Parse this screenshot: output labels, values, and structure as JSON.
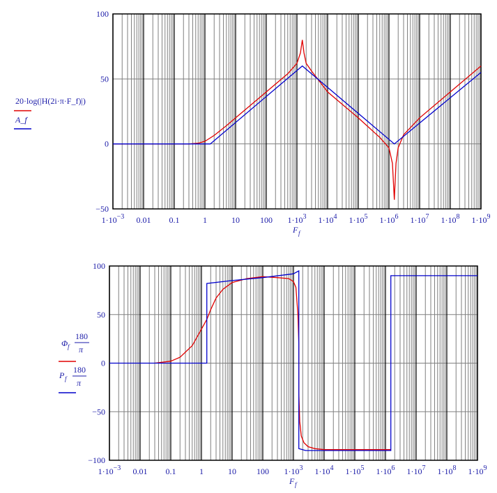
{
  "chart_data": [
    {
      "type": "line",
      "title": "",
      "xscale": "log",
      "xlim": [
        0.001,
        1000000000
      ],
      "ylim": [
        -50,
        100
      ],
      "xticks": [
        "1·10^-3",
        "0.01",
        "0.1",
        "1",
        "10",
        "100",
        "1·10^3",
        "1·10^4",
        "1·10^5",
        "1·10^6",
        "1·10^7",
        "1·10^8",
        "1·10^9"
      ],
      "yticks": [
        -50,
        0,
        50,
        100
      ],
      "xlabel": "F_f",
      "ylabel_series": [
        "20·log(|H(2i·π·F_f)|)",
        "A_f"
      ],
      "grid": true,
      "series": [
        {
          "name": "20·log(|H(2i·π·F_f)|)",
          "color": "#e00000",
          "x": [
            0.001,
            0.3,
            0.6,
            1,
            2,
            5,
            10,
            100,
            500,
            1000,
            1300,
            1500,
            1700,
            2000,
            3000,
            10000,
            100000,
            500000,
            1000000,
            1300000,
            1500000,
            1700000,
            2000000,
            3000000,
            10000000,
            100000000,
            1000000000
          ],
          "y": [
            0,
            0,
            0.5,
            2,
            6.5,
            14,
            20,
            40,
            54,
            62,
            70,
            80,
            70,
            62,
            56,
            40,
            20,
            5,
            -3,
            -15,
            -43,
            -15,
            -3,
            7,
            20,
            40,
            60
          ]
        },
        {
          "name": "A_f",
          "color": "#0000cc",
          "x": [
            0.001,
            1.5,
            1500,
            1500000,
            1000000000
          ],
          "y": [
            0,
            0,
            60,
            0,
            55
          ]
        }
      ]
    },
    {
      "type": "line",
      "title": "",
      "xscale": "log",
      "xlim": [
        0.001,
        1000000000
      ],
      "ylim": [
        -100,
        100
      ],
      "xticks": [
        "1·10^-3",
        "0.01",
        "0.1",
        "1",
        "10",
        "100",
        "1·10^3",
        "1·10^4",
        "1·10^5",
        "1·10^6",
        "1·10^7",
        "1·10^8",
        "1·10^9"
      ],
      "yticks": [
        -100,
        -50,
        0,
        50,
        100
      ],
      "xlabel": "F_f",
      "ylabel_series": [
        "Φ_f·180/π",
        "P_f·180/π"
      ],
      "grid": true,
      "series": [
        {
          "name": "Φ_f·180/π",
          "color": "#e00000",
          "x": [
            0.03,
            0.1,
            0.2,
            0.5,
            1,
            1.5,
            2,
            3,
            5,
            10,
            30,
            100,
            300,
            700,
            1000,
            1200,
            1400,
            1500,
            1500,
            1600,
            1800,
            2200,
            3000,
            5000,
            10000,
            15000,
            120000,
            1500000
          ],
          "y": [
            0,
            2,
            6,
            18,
            35,
            45,
            55,
            67,
            76,
            83,
            87,
            89,
            88,
            87,
            84,
            78,
            50,
            20,
            -30,
            -60,
            -75,
            -82,
            -86,
            -88,
            -89,
            -89,
            -89,
            -89
          ]
        },
        {
          "name": "P_f·180/π",
          "color": "#0000cc",
          "x": [
            0.001,
            1.5,
            1.5,
            10,
            100,
            1000,
            1500,
            1500,
            2500,
            100000,
            1500000,
            1500000,
            1000000000
          ],
          "y": [
            0,
            0,
            82,
            85,
            88,
            92,
            95,
            -88,
            -90,
            -90,
            -90,
            90,
            90
          ]
        }
      ]
    }
  ],
  "top_chart": {
    "legend": {
      "line1": "20·log(|H(2i·π·F_f)|)",
      "line2": "A_f"
    },
    "xlabel": "F",
    "xlabel_sub": "f"
  },
  "bottom_chart": {
    "legend": {
      "line1_var": "Φ",
      "line2_var": "P",
      "sub": "f",
      "num": "180",
      "den": "π"
    },
    "xlabel": "F",
    "xlabel_sub": "f"
  },
  "colors": {
    "red": "#e00000",
    "blue": "#0000cc",
    "grid_minor": "#808080",
    "grid_major": "#000000",
    "text": "#1a1aa8"
  }
}
